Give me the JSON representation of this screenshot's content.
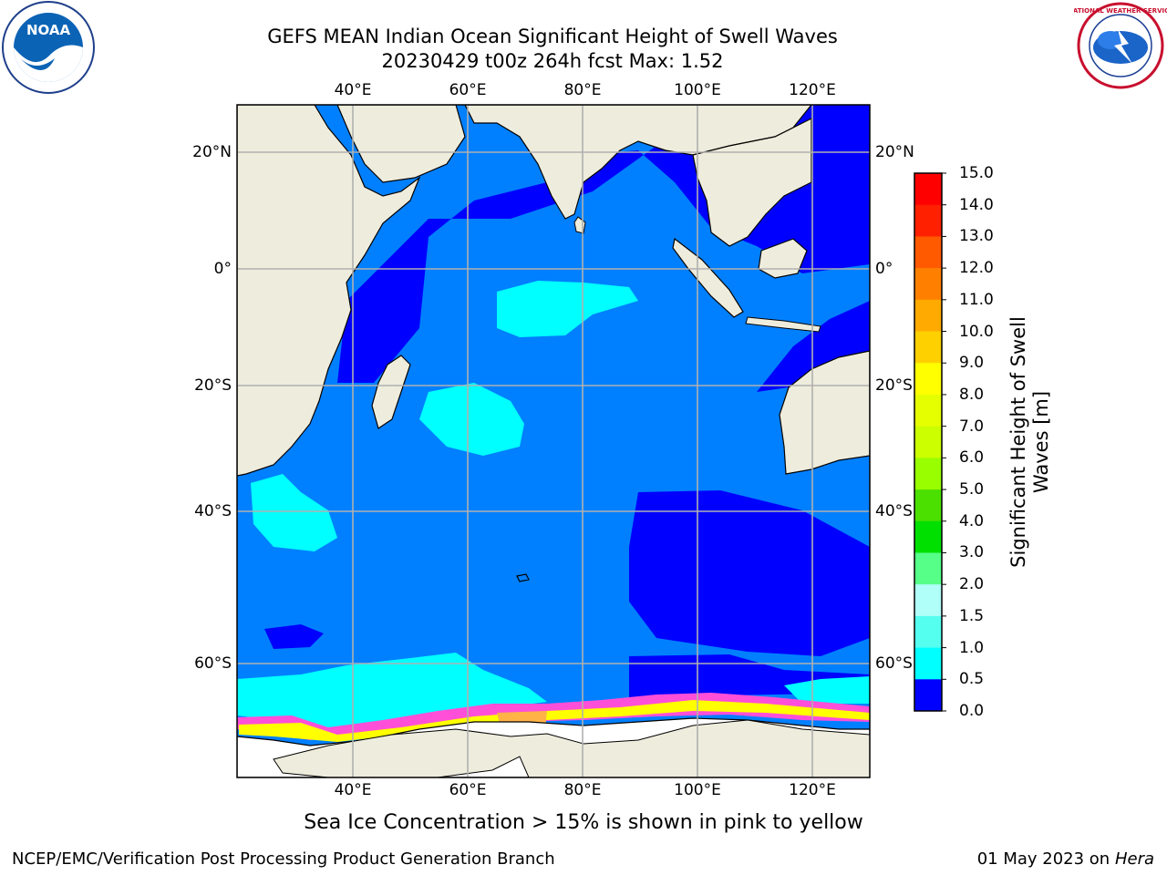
{
  "header": {
    "title_line1": "GEFS MEAN Indian Ocean Significant Height of Swell Waves",
    "title_line2": "20230429 t00z 264h fcst   Max: 1.52"
  },
  "map": {
    "lon_labels": [
      "40°E",
      "60°E",
      "80°E",
      "100°E",
      "120°E"
    ],
    "lat_labels": [
      "20°N",
      "0°",
      "20°S",
      "40°S",
      "60°S"
    ],
    "colors": {
      "land": "#eeecdc",
      "ocean_low": "#0000ff",
      "ocean_mid": "#0080ff",
      "ocean_high": "#00ffff",
      "ice_pink": "#ff4fd8",
      "ice_orange": "#ffb347",
      "ice_yellow": "#ffff00",
      "grid": "#b0b0b0"
    }
  },
  "colorbar": {
    "title_line1": "Significant Height of Swell",
    "title_line2": "Waves [m]",
    "ticks": [
      "15.0",
      "14.0",
      "13.0",
      "12.0",
      "11.0",
      "10.0",
      "9.0",
      "8.0",
      "7.0",
      "6.0",
      "5.0",
      "4.0",
      "3.0",
      "2.0",
      "1.5",
      "1.0",
      "0.5",
      "0.0"
    ],
    "colors": [
      "#ff0000",
      "#ff2000",
      "#ff5a00",
      "#ff8000",
      "#ffaa00",
      "#ffd000",
      "#ffff00",
      "#e6ff00",
      "#ccff00",
      "#99ff00",
      "#4ce000",
      "#00e000",
      "#55ff88",
      "#b0fff8",
      "#55fff0",
      "#00ffff",
      "#0080ff",
      "#0000ff"
    ]
  },
  "caption": "Sea Ice Concentration > 15% is shown in pink to yellow",
  "footer": {
    "left": "NCEP/EMC/Verification Post Processing Product Generation Branch",
    "date": "01 May 2023 on",
    "machine": "Hera"
  },
  "logos": {
    "noaa_text": "NOAA",
    "nws_text": "NATIONAL WEATHER SERVICE"
  }
}
